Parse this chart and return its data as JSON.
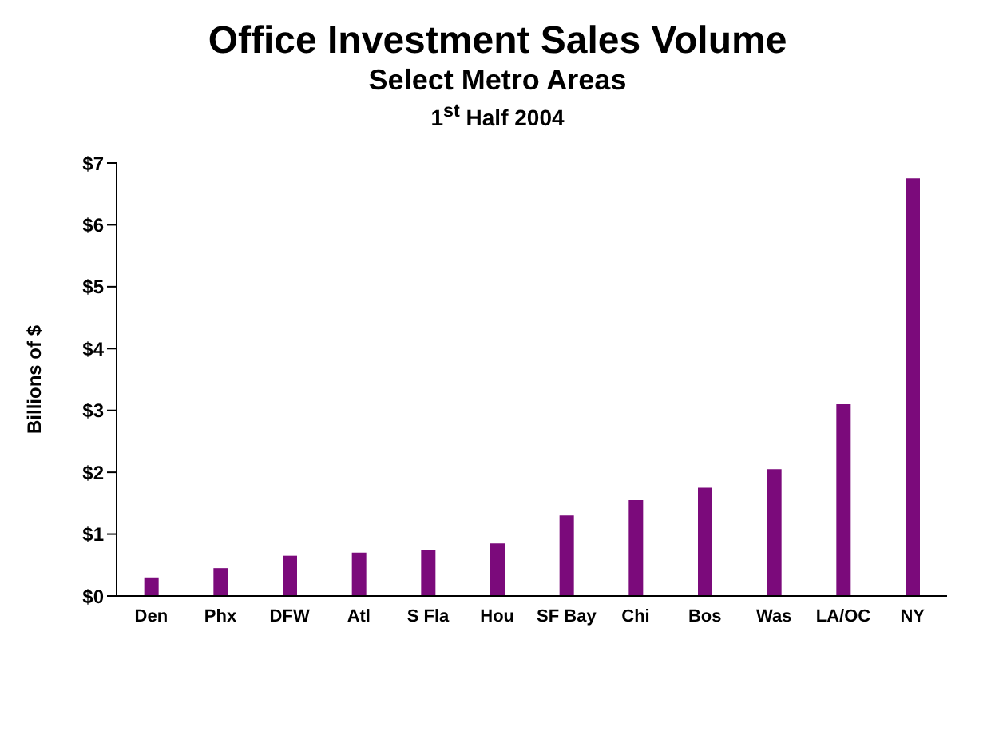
{
  "chart_data": {
    "type": "bar",
    "title": "Office Investment Sales Volume",
    "subtitle": "Select Metro Areas",
    "annotations": [
      "1$^{st}$ Half 2004"
    ],
    "ylabel": "Billions of $",
    "categories": [
      "Den",
      "Phx",
      "DFW",
      "Atl",
      "S Fla",
      "Hou",
      "SF Bay",
      "Chi",
      "Bos",
      "Was",
      "LA/OC",
      "NY"
    ],
    "values": [
      0.3,
      0.45,
      0.65,
      0.7,
      0.75,
      0.85,
      1.3,
      1.55,
      1.75,
      2.05,
      3.1,
      6.75
    ],
    "color": "#7b0a7b",
    "ylim": [
      0,
      7
    ],
    "yticks": [
      {
        "value": 0,
        "label": "$0"
      },
      {
        "value": 1,
        "label": "$1"
      },
      {
        "value": 2,
        "label": "$2"
      },
      {
        "value": 3,
        "label": "$3"
      },
      {
        "value": 4,
        "label": "$4"
      },
      {
        "value": 5,
        "label": "$5"
      },
      {
        "value": 6,
        "label": "$6"
      },
      {
        "value": 7,
        "label": "$7"
      }
    ],
    "grid": false,
    "legend": false
  }
}
